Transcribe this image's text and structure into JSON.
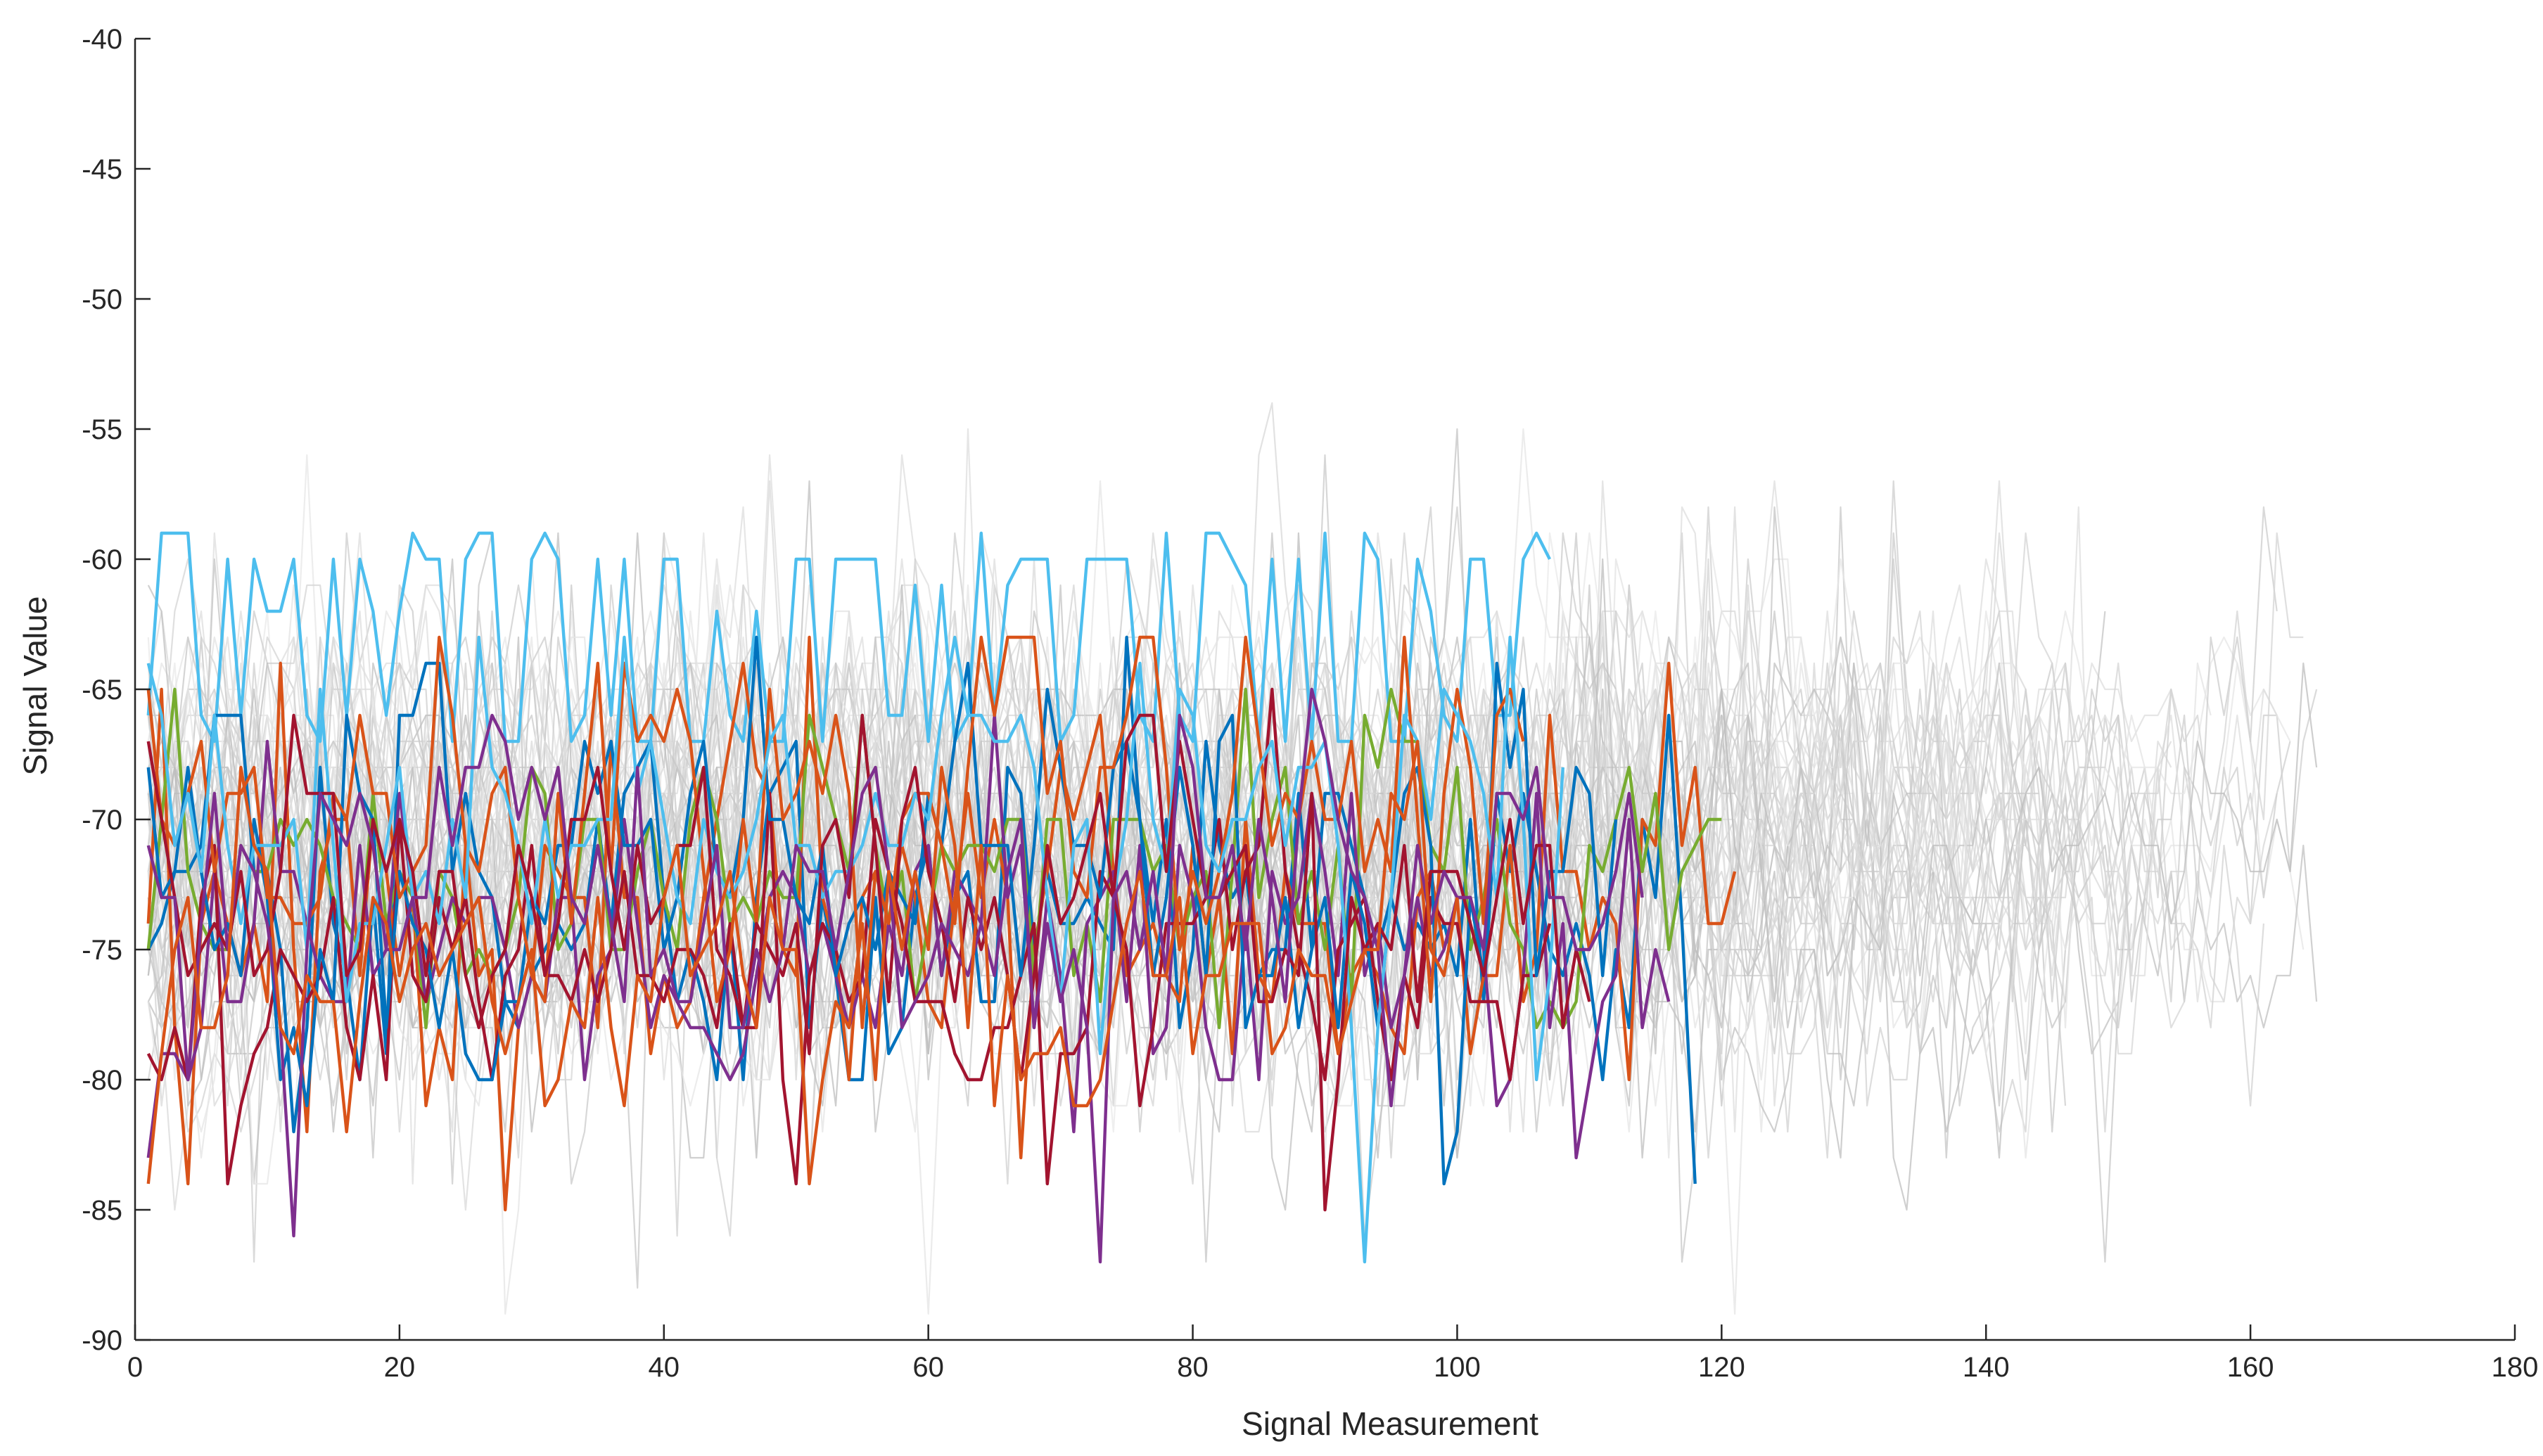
{
  "chart_data": {
    "type": "line",
    "title": "",
    "xlabel": "Signal Measurement",
    "ylabel": "Signal Value",
    "xlim": [
      0,
      180
    ],
    "ylim": [
      -90,
      -40
    ],
    "xticks": [
      0,
      20,
      40,
      60,
      80,
      100,
      120,
      140,
      160,
      180
    ],
    "yticks": [
      -40,
      -45,
      -50,
      -55,
      -60,
      -65,
      -70,
      -75,
      -80,
      -85,
      -90
    ],
    "grid": false,
    "legend": "none",
    "background_series": {
      "color": "#d9d9d9",
      "count": 70,
      "x_start": 1,
      "length_range": [
        105,
        168
      ],
      "value_band": [
        -89,
        -54
      ],
      "typical_center": -71
    },
    "series": [
      {
        "color": "#4dbeee",
        "center": -59,
        "low": -66,
        "pattern": "square",
        "length": 107
      },
      {
        "color": "#0072bd",
        "center": -73,
        "spread": 5,
        "length": 118
      },
      {
        "color": "#d95319",
        "center": -74,
        "spread": 5,
        "length": 121
      },
      {
        "color": "#77ac30",
        "center": -72,
        "spread": 4,
        "length": 120
      },
      {
        "color": "#7e2f8e",
        "center": -75,
        "spread": 4,
        "length": 116
      },
      {
        "color": "#a2142f",
        "center": -76,
        "spread": 3.5,
        "length": 107
      },
      {
        "color": "#0072bd",
        "center": -72,
        "spread": 5,
        "length": 112
      },
      {
        "color": "#d95319",
        "center": -69,
        "spread": 4,
        "length": 105
      },
      {
        "color": "#4dbeee",
        "center": -70,
        "spread": 5,
        "length": 108
      },
      {
        "color": "#a2142f",
        "center": -73,
        "spread": 4,
        "length": 110
      },
      {
        "color": "#7e2f8e",
        "center": -73,
        "spread": 4.5,
        "length": 114
      },
      {
        "color": "#d95319",
        "center": -76,
        "spread": 4,
        "length": 100
      }
    ]
  }
}
